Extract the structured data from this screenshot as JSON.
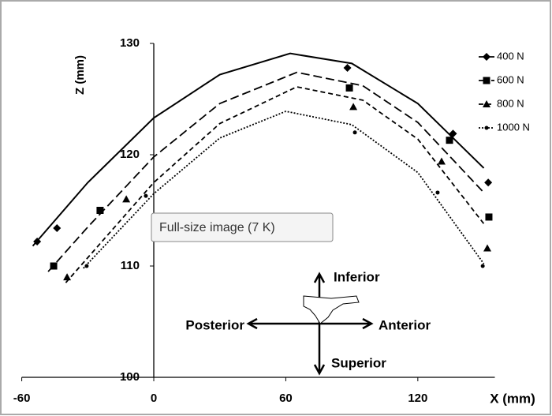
{
  "chart_data": {
    "type": "scatter",
    "x_label": "X (mm)",
    "y_label": "Z (mm)",
    "xlim": [
      -60,
      155
    ],
    "ylim": [
      100,
      130
    ],
    "xticks": [
      -60,
      0,
      60,
      120
    ],
    "yticks": [
      100,
      110,
      120,
      130
    ],
    "legend": "top-right",
    "series": [
      {
        "name": "400 N",
        "color": "#000000",
        "marker": "diamond",
        "dash": "solid",
        "x": [
          -53,
          -44,
          88,
          136,
          152
        ],
        "values": [
          112.2,
          113.4,
          127.8,
          121.9,
          117.5
        ],
        "trendline": {
          "x": [
            -55,
            -30,
            0,
            30,
            62,
            90,
            120,
            150
          ],
          "values": [
            111.8,
            117.5,
            123.3,
            127.2,
            129.1,
            128.2,
            124.6,
            118.8
          ]
        }
      },
      {
        "name": "600 N",
        "color": "#000000",
        "marker": "square",
        "dash": "long-dash",
        "x": [
          -45.5,
          -24.4,
          88.9,
          134.4,
          152.3
        ],
        "values": [
          110.0,
          115.0,
          126.0,
          121.3,
          114.4
        ],
        "trendline": {
          "x": [
            -48,
            -30,
            0,
            30,
            65,
            95,
            120,
            150
          ],
          "values": [
            109.5,
            113.5,
            119.8,
            124.6,
            127.4,
            126.2,
            122.9,
            116.6
          ]
        }
      },
      {
        "name": "800 N",
        "color": "#000000",
        "marker": "triangle",
        "dash": "dash",
        "x": [
          -39.4,
          -12.5,
          90.7,
          130.8,
          151.6
        ],
        "values": [
          109.0,
          116.0,
          124.3,
          119.4,
          111.6
        ],
        "trendline": {
          "x": [
            -40,
            -20,
            0,
            30,
            65,
            95,
            120,
            150
          ],
          "values": [
            108.5,
            113.0,
            117.5,
            122.8,
            126.1,
            124.9,
            121.4,
            113.8
          ]
        }
      },
      {
        "name": "1000 N",
        "color": "#000000",
        "marker": "dot",
        "dash": "dot",
        "x": [
          -30.5,
          -3.6,
          91.4,
          129,
          149.5
        ],
        "values": [
          110.0,
          116.3,
          122.0,
          116.6,
          110.0
        ],
        "trendline": {
          "x": [
            -32,
            0,
            30,
            60,
            90,
            120,
            150
          ],
          "values": [
            109.8,
            116.5,
            121.5,
            123.9,
            122.7,
            118.4,
            110.2
          ]
        }
      }
    ],
    "orientation": {
      "up": "Inferior",
      "left": "Posterior",
      "right": "Anterior",
      "down": "Superior"
    },
    "tooltip": "Full-size image (7 K)"
  }
}
